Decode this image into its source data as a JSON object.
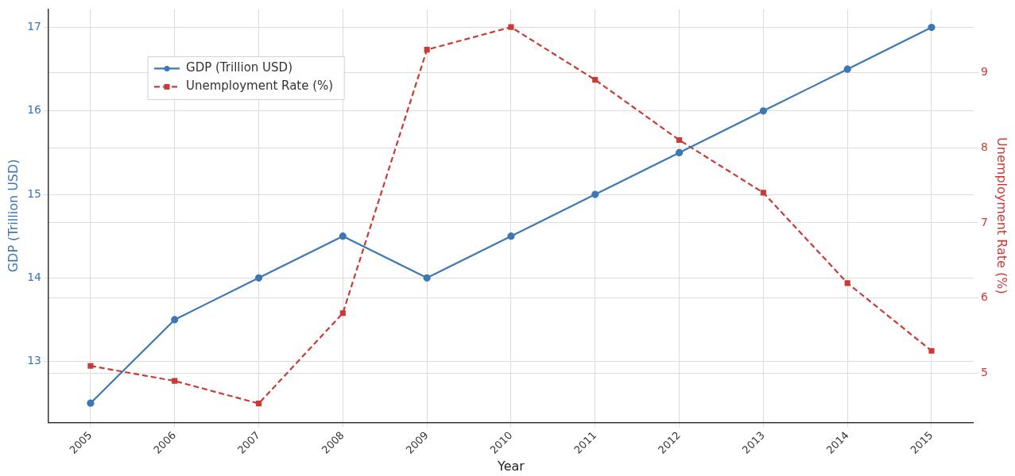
{
  "chart_data": {
    "type": "line",
    "xlabel": "Year",
    "ylabel": "GDP (Trillion USD)",
    "y2label": "Unemployment Rate (%)",
    "categories": [
      "2005",
      "2006",
      "2007",
      "2008",
      "2009",
      "2010",
      "2011",
      "2012",
      "2013",
      "2014",
      "2015"
    ],
    "series": [
      {
        "name": "GDP (Trillion USD)",
        "color": "#3b78b5",
        "values": [
          12.5,
          13.5,
          14,
          14.5,
          14,
          14.5,
          15,
          15.5,
          16,
          16.5,
          17
        ],
        "marker": "circle",
        "line_style": "solid"
      },
      {
        "name": "Unemployment Rate (%)",
        "color": "#cc3a35",
        "axis": "y2",
        "values": [
          5.1,
          4.9,
          4.6,
          5.8,
          9.3,
          9.6,
          8.9,
          8.1,
          7.4,
          6.2,
          5.3
        ],
        "marker": "square",
        "line_style": "dashed"
      }
    ],
    "ylim": [
      12.27,
      17.22
    ],
    "yticks": [
      13,
      14,
      15,
      16,
      17
    ],
    "y2lim": [
      4.35,
      9.84
    ],
    "y2ticks": [
      5,
      6,
      7,
      8,
      9
    ],
    "grid": true,
    "legend": "top left"
  }
}
